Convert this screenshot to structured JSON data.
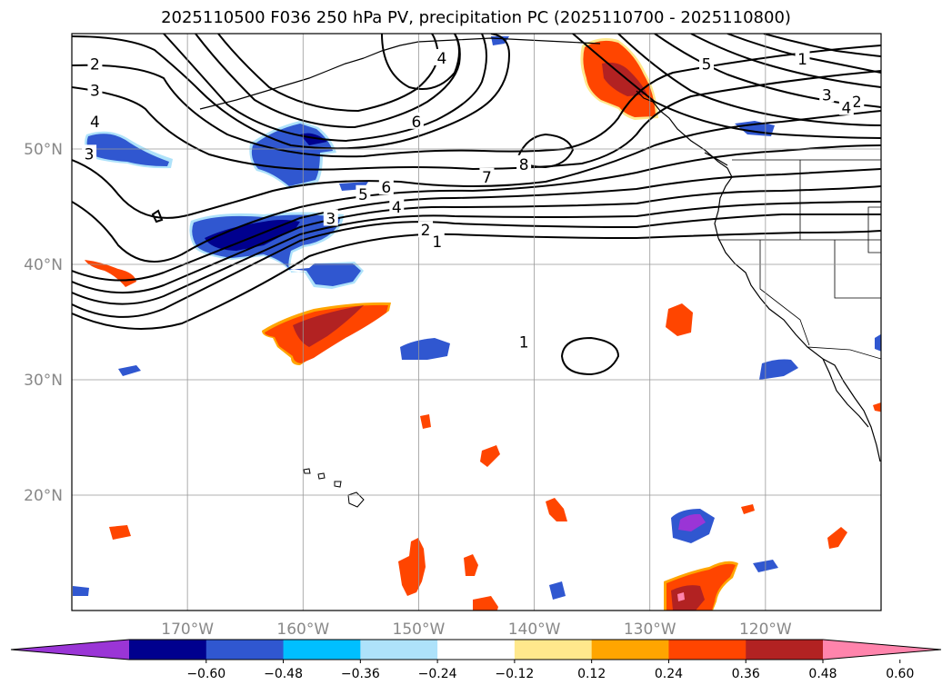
{
  "title": "2025110500 F036 250 hPa PV, precipitation PC (2025110700 - 2025110800)",
  "map": {
    "lat_labels": [
      {
        "text": "50°N",
        "lat": 50
      },
      {
        "text": "40°N",
        "lat": 40
      },
      {
        "text": "30°N",
        "lat": 30
      },
      {
        "text": "20°N",
        "lat": 20
      }
    ],
    "lon_labels": [
      {
        "text": "170°W",
        "lon": -170
      },
      {
        "text": "160°W",
        "lon": -160
      },
      {
        "text": "150°W",
        "lon": -150
      },
      {
        "text": "140°W",
        "lon": -140
      },
      {
        "text": "130°W",
        "lon": -130
      },
      {
        "text": "120°W",
        "lon": -120
      }
    ],
    "lon_range": [
      -180,
      -110
    ],
    "lat_range": [
      10,
      60
    ],
    "grid": true,
    "pv_contour_labels": [
      {
        "text": "2",
        "lon": -178,
        "lat": 57.3
      },
      {
        "text": "3",
        "lon": -178,
        "lat": 55.0
      },
      {
        "text": "4",
        "lon": -178,
        "lat": 52.3
      },
      {
        "text": "3",
        "lon": -178.5,
        "lat": 49.5
      },
      {
        "text": "4",
        "lon": -148,
        "lat": 57.8
      },
      {
        "text": "6",
        "lon": -150.2,
        "lat": 52.3
      },
      {
        "text": "8",
        "lon": -140.9,
        "lat": 48.6
      },
      {
        "text": "7",
        "lon": -144.1,
        "lat": 47.5
      },
      {
        "text": "6",
        "lon": -152.8,
        "lat": 46.6
      },
      {
        "text": "5",
        "lon": -154.8,
        "lat": 46.0
      },
      {
        "text": "4",
        "lon": -151.9,
        "lat": 44.9
      },
      {
        "text": "3",
        "lon": -157.6,
        "lat": 43.9
      },
      {
        "text": "2",
        "lon": -149.4,
        "lat": 42.9
      },
      {
        "text": "1",
        "lon": -148.4,
        "lat": 41.9
      },
      {
        "text": "1",
        "lon": -116.8,
        "lat": 57.7
      },
      {
        "text": "5",
        "lon": -125.1,
        "lat": 57.3
      },
      {
        "text": "3",
        "lon": -114.7,
        "lat": 54.6
      },
      {
        "text": "2",
        "lon": -112.1,
        "lat": 54.0
      },
      {
        "text": "4",
        "lon": -113.0,
        "lat": 53.5
      },
      {
        "text": "1",
        "lon": -140.9,
        "lat": 33.2
      }
    ]
  },
  "colorbar": {
    "ticks": [
      "−0.60",
      "−0.48",
      "−0.36",
      "−0.24",
      "−0.12",
      "0.12",
      "0.24",
      "0.36",
      "0.48",
      "0.60"
    ],
    "colors": [
      "#9a35d6",
      "#00008e",
      "#3057d0",
      "#00bfff",
      "#aee2fa",
      "#ffffff",
      "#ffe88c",
      "#ffa500",
      "#ff4500",
      "#b22222",
      "#ff84ac"
    ]
  }
}
